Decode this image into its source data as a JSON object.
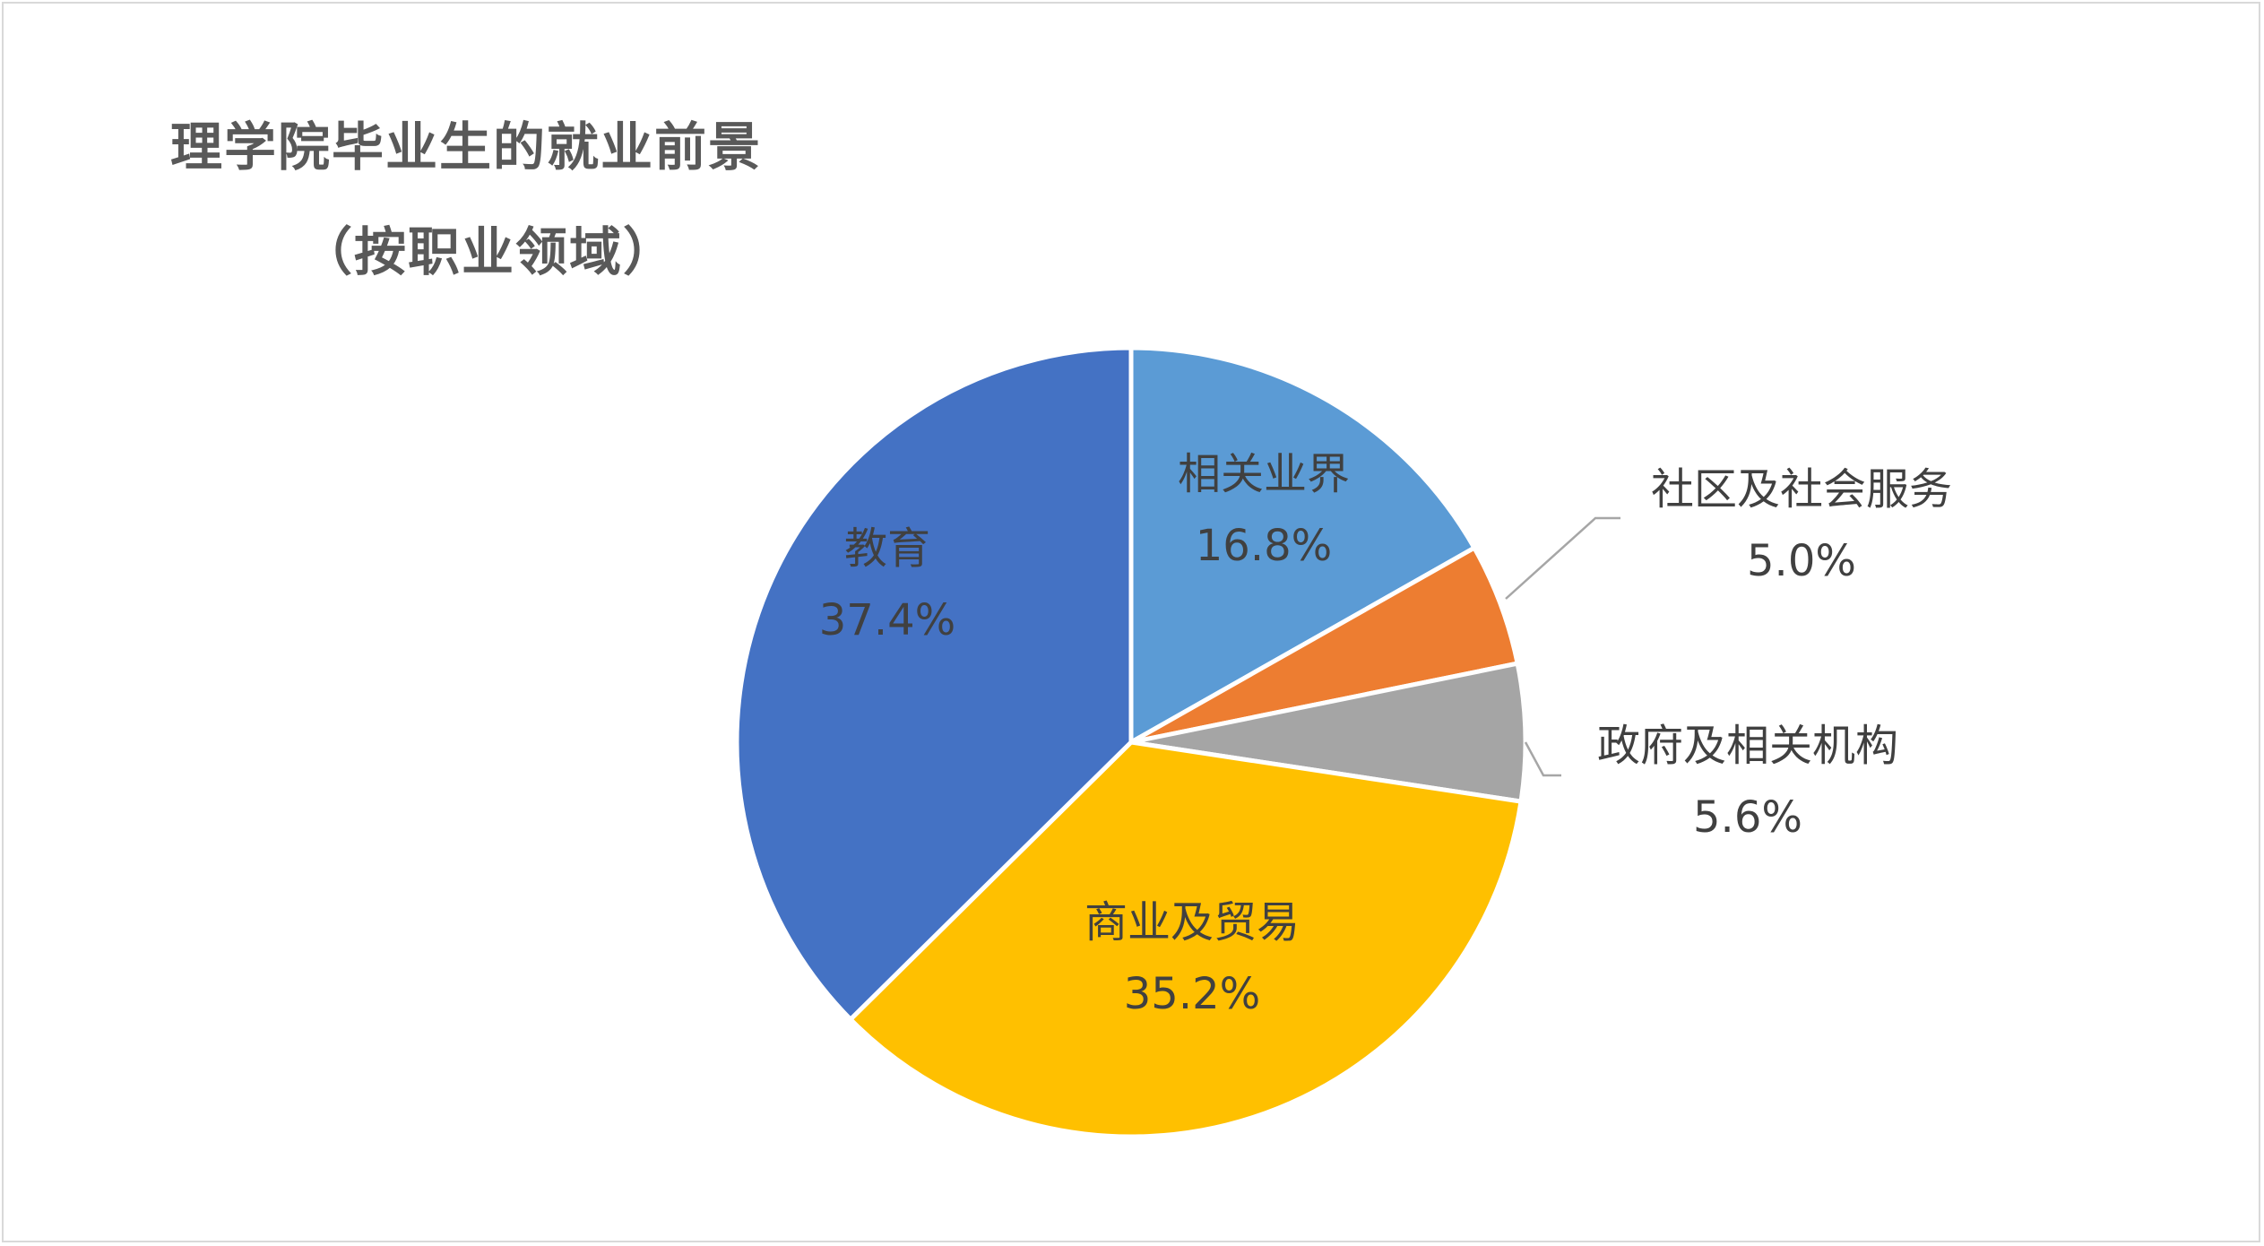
{
  "chart_data": {
    "type": "pie",
    "title": "理学院毕业生的就业前景",
    "subtitle": "（按职业领域）",
    "slices": [
      {
        "label": "相关业界",
        "value": 16.8,
        "percent_text": "16.8%",
        "color": "#5B9BD5"
      },
      {
        "label": "社区及社会服务",
        "value": 5.0,
        "percent_text": "5.0%",
        "color": "#ED7D31"
      },
      {
        "label": "政府及相关机构",
        "value": 5.6,
        "percent_text": "5.6%",
        "color": "#A5A5A5"
      },
      {
        "label": "商业及贸易",
        "value": 35.2,
        "percent_text": "35.2%",
        "color": "#FFC000"
      },
      {
        "label": "教育",
        "value": 37.4,
        "percent_text": "37.4%",
        "color": "#4472C4"
      }
    ],
    "start": "12 o'clock",
    "direction": "clockwise",
    "legend": "none"
  }
}
